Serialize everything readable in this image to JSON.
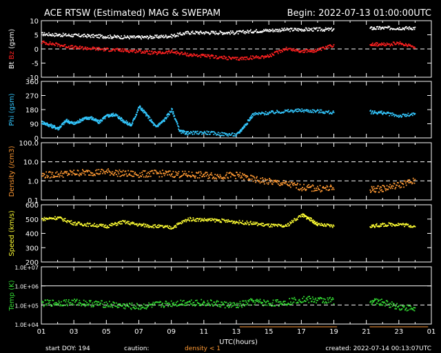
{
  "header": {
    "title": "ACE RTSW (Estimated) MAG & SWEPAM",
    "begin": "Begin: 2022-07-13 01:00:00UTC"
  },
  "footer": {
    "start_doy": "start DOY: 194",
    "caution": "caution:",
    "density_note": "density < 1",
    "created": "created: 2022-07-14 00:13:07UTC"
  },
  "colors": {
    "background": "#000000",
    "axis": "#ffffff",
    "bt": "#ffffff",
    "bz": "#ff2020",
    "phi": "#33c8ff",
    "density": "#ff9933",
    "speed": "#ffff33",
    "temp": "#33dd33",
    "caution": "#ff9933"
  },
  "chart_data": [
    {
      "type": "line",
      "name": "mag",
      "ylabel_parts": [
        "Bt",
        "Bz",
        "(gsm)"
      ],
      "ylim": [
        -10,
        10
      ],
      "yticks": [
        10,
        5,
        0,
        -5,
        -10
      ],
      "ytick_labels": [
        "10",
        "5",
        "0",
        "-5",
        "-10"
      ],
      "dashed_ref": [
        0
      ],
      "series": [
        {
          "name": "Bt",
          "color": "#ffffff",
          "x": [
            1,
            2,
            3,
            4,
            5,
            6,
            7,
            8,
            9,
            10,
            11,
            12,
            13,
            14,
            15,
            16,
            17,
            18,
            19,
            21.2,
            22,
            23,
            24
          ],
          "y": [
            5.3,
            5.0,
            4.8,
            4.6,
            4.4,
            4.2,
            4.1,
            4.3,
            4.6,
            5.8,
            5.8,
            5.8,
            5.8,
            6.3,
            6.6,
            6.8,
            6.9,
            6.9,
            6.9,
            7.3,
            7.4,
            7.4,
            7.4
          ]
        },
        {
          "name": "Bz",
          "color": "#ff2020",
          "x": [
            1,
            2,
            3,
            4,
            5,
            6,
            7,
            8,
            9,
            10,
            11,
            12,
            13,
            14,
            15,
            16,
            17,
            18,
            19,
            21.2,
            22,
            23,
            24
          ],
          "y": [
            2.4,
            1.5,
            0.5,
            0.2,
            -0.2,
            -0.5,
            -0.8,
            -1.5,
            -1.0,
            -2.0,
            -2.5,
            -3.0,
            -3.5,
            -3.0,
            -2.5,
            0.2,
            -0.8,
            -0.5,
            1.5,
            1.8,
            1.5,
            2.0,
            0.8
          ]
        }
      ],
      "gaps": [
        [
          19.3,
          21.0
        ]
      ]
    },
    {
      "type": "scatter",
      "name": "phi",
      "ylabel": "Phi (gsm)",
      "ylim": [
        0,
        360
      ],
      "yticks": [
        360,
        270,
        180,
        90,
        0
      ],
      "ytick_labels": [
        "360",
        "270",
        "180",
        "90",
        "0"
      ],
      "series": [
        {
          "name": "Phi",
          "color": "#33c8ff",
          "x": [
            1,
            1.5,
            2,
            2.5,
            3,
            3.5,
            4,
            4.5,
            5,
            5.5,
            6,
            6.5,
            7,
            7.5,
            8,
            8.5,
            9,
            9.5,
            10,
            11,
            12,
            13,
            13.5,
            14,
            15,
            16,
            17,
            18,
            19,
            21.2,
            22,
            23,
            24
          ],
          "y": [
            100,
            80,
            60,
            110,
            90,
            120,
            130,
            100,
            140,
            150,
            110,
            80,
            200,
            140,
            70,
            110,
            180,
            40,
            30,
            35,
            25,
            20,
            80,
            150,
            160,
            170,
            175,
            170,
            160,
            165,
            160,
            140,
            150
          ]
        }
      ],
      "gaps": [
        [
          19.3,
          21.0
        ]
      ]
    },
    {
      "type": "scatter",
      "name": "density",
      "ylabel": "Density (/cm3)",
      "log": true,
      "ylim": [
        0.1,
        100
      ],
      "yticks": [
        100,
        10,
        1,
        0.1
      ],
      "ytick_labels": [
        "100.0",
        "10.0",
        "1.0",
        "0.1"
      ],
      "dashed_ref": [
        10,
        1
      ],
      "series": [
        {
          "name": "Density",
          "color": "#ff9933",
          "x": [
            1,
            2,
            3,
            4,
            5,
            6,
            7,
            8,
            9,
            10,
            11,
            12,
            13,
            14,
            15,
            16,
            17,
            18,
            19,
            21.2,
            22,
            23,
            24
          ],
          "y": [
            2.0,
            2.2,
            2.6,
            2.8,
            3.0,
            2.4,
            2.2,
            2.5,
            2.3,
            2.1,
            2.0,
            1.8,
            2.0,
            1.2,
            0.9,
            0.7,
            0.45,
            0.4,
            0.4,
            0.35,
            0.4,
            0.6,
            1.0
          ]
        }
      ],
      "gaps": [
        [
          19.3,
          21.0
        ]
      ]
    },
    {
      "type": "scatter",
      "name": "speed",
      "ylabel": "Speed (km/s)",
      "ylim": [
        200,
        600
      ],
      "yticks": [
        600,
        500,
        400,
        300,
        200
      ],
      "ytick_labels": [
        "600",
        "500",
        "400",
        "300",
        "200"
      ],
      "series": [
        {
          "name": "Speed",
          "color": "#ffff33",
          "x": [
            1,
            2,
            3,
            4,
            5,
            6,
            7,
            8,
            9,
            10,
            11,
            12,
            13,
            14,
            15,
            16,
            17,
            17.5,
            18,
            19,
            21.2,
            22,
            23,
            24
          ],
          "y": [
            500,
            510,
            470,
            460,
            450,
            480,
            460,
            450,
            440,
            500,
            495,
            490,
            480,
            470,
            455,
            450,
            530,
            500,
            460,
            450,
            450,
            460,
            465,
            450
          ]
        }
      ],
      "gaps": [
        [
          19.3,
          21.0
        ]
      ]
    },
    {
      "type": "scatter",
      "name": "temp",
      "ylabel": "Temp (K)",
      "log": true,
      "ylim": [
        10000,
        10000000
      ],
      "yticks": [
        10000000,
        1000000,
        100000,
        10000
      ],
      "ytick_labels": [
        "1.0E+07",
        "1.0E+06",
        "1.0E+05",
        "1.0E+04"
      ],
      "dashed_ref": [
        100000
      ],
      "solid_ref": [
        1000000
      ],
      "series": [
        {
          "name": "Temp",
          "color": "#33dd33",
          "x": [
            1,
            2,
            3,
            4,
            5,
            6,
            7,
            8,
            9,
            10,
            11,
            12,
            13,
            14,
            15,
            16,
            17,
            18,
            19,
            21.2,
            22,
            23,
            24
          ],
          "y": [
            120000,
            130000,
            140000,
            120000,
            110000,
            90000,
            80000,
            100000,
            120000,
            140000,
            130000,
            110000,
            90000,
            150000,
            120000,
            140000,
            200000,
            180000,
            170000,
            160000,
            130000,
            80000,
            60000
          ]
        }
      ],
      "gaps": [
        [
          19.3,
          21.0
        ]
      ]
    }
  ],
  "x_axis": {
    "label": "UTC(hours)",
    "range_hours": [
      1,
      25
    ],
    "tick_labels": [
      "01",
      "03",
      "05",
      "07",
      "09",
      "11",
      "13",
      "15",
      "17",
      "19",
      "21",
      "23",
      "01"
    ]
  }
}
